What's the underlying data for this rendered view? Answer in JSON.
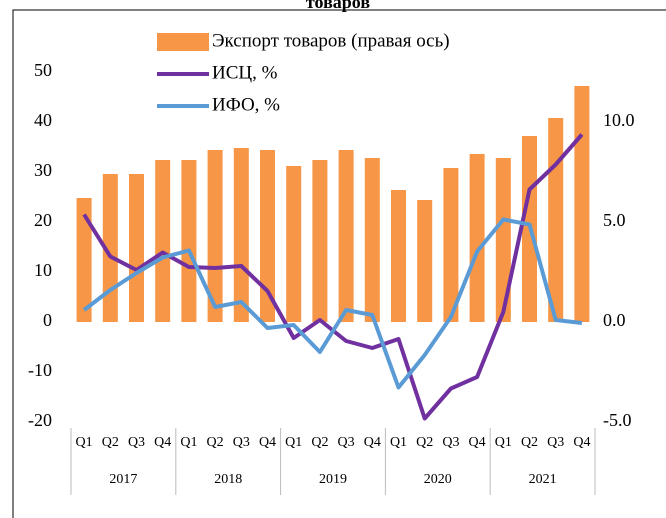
{
  "chart_data": {
    "type": "bar-line",
    "title": "товаров",
    "categories": [
      "Q1",
      "Q2",
      "Q3",
      "Q4",
      "Q1",
      "Q2",
      "Q3",
      "Q4",
      "Q1",
      "Q2",
      "Q3",
      "Q4",
      "Q1",
      "Q2",
      "Q3",
      "Q4",
      "Q1",
      "Q2",
      "Q3",
      "Q4"
    ],
    "years": [
      "2017",
      "2018",
      "2019",
      "2020",
      "2021"
    ],
    "series": [
      {
        "name": "Экспорт товаров (правая ось)",
        "type": "bar",
        "axis": "y2",
        "color": "#f79646",
        "values": [
          6.2,
          7.4,
          7.4,
          8.1,
          8.1,
          8.6,
          8.7,
          8.6,
          7.8,
          8.1,
          8.6,
          8.2,
          6.6,
          6.1,
          7.7,
          8.4,
          8.2,
          9.3,
          10.2,
          11.8
        ]
      },
      {
        "name": "ИСЦ, %",
        "type": "line",
        "color": "#7030a0",
        "values": [
          21.5,
          13.1,
          10.4,
          13.9,
          11.0,
          10.8,
          11.2,
          6.2,
          -3.2,
          0.4,
          -3.8,
          -5.2,
          -3.4,
          -19.3,
          -13.3,
          -11.0,
          2.0,
          26.5,
          31.5,
          37.5
        ]
      },
      {
        "name": "ИФО, %",
        "type": "line",
        "color": "#5b9bd5",
        "values": [
          2.4,
          6.4,
          9.8,
          12.9,
          14.3,
          3.0,
          4.0,
          -1.2,
          -0.6,
          -6.0,
          2.4,
          1.4,
          -13.1,
          -6.6,
          1.0,
          14.1,
          20.5,
          19.5,
          0.4,
          -0.2
        ]
      }
    ],
    "ylim": [
      -20,
      60
    ],
    "yticks": [
      -20,
      -10,
      0,
      10,
      20,
      30,
      40,
      50
    ],
    "y2lim": [
      -5,
      15
    ],
    "y2ticks": [
      {
        "value": -5,
        "label": "-5.0"
      },
      {
        "value": 0,
        "label": "0.0"
      },
      {
        "value": 5,
        "label": "5.0"
      },
      {
        "value": 10,
        "label": "10.0"
      }
    ],
    "legend": "top"
  }
}
